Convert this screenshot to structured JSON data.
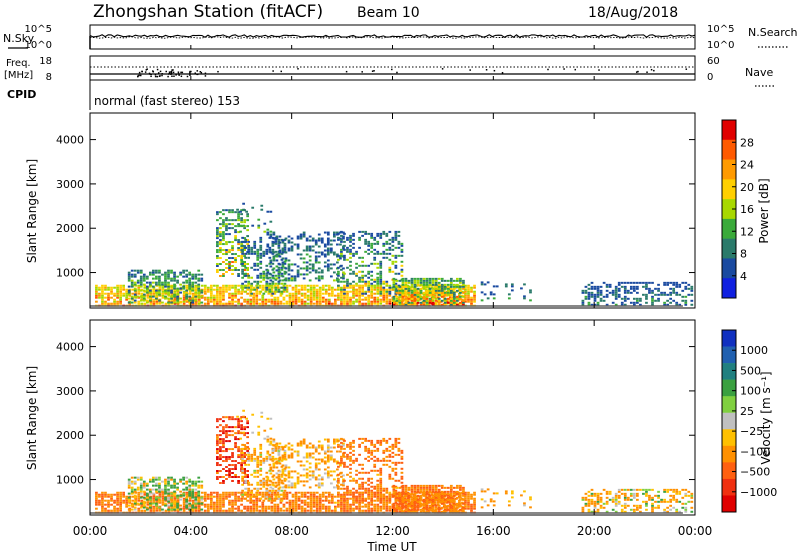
{
  "header": {
    "title": "Zhongshan Station (fitACF)",
    "beam": "Beam 10",
    "date": "18/Aug/2018"
  },
  "chart_data": [
    {
      "type": "line",
      "panel": "noise",
      "left_label": "N.Sky",
      "right_label": "N.Search",
      "left_ticks": [
        "10^5",
        "10^0"
      ],
      "right_ticks": [
        "10^5",
        "10^0"
      ],
      "scale": "log"
    },
    {
      "type": "scatter",
      "panel": "frequency",
      "left_label_1": "Freq.",
      "left_label_2": "[MHz]",
      "right_label": "Nave",
      "left_ticks": [
        "18",
        "8"
      ],
      "right_ticks": [
        "60",
        "0"
      ],
      "freq_ylim": [
        8,
        18
      ],
      "nave_ylim": [
        0,
        60
      ]
    },
    {
      "type": "table",
      "panel": "cpid",
      "label": "CPID",
      "mode": "normal (fast stereo) 153"
    },
    {
      "type": "heatmap",
      "panel": "power",
      "ylabel": "Slant Range [km]",
      "yticks": [
        "1000",
        "2000",
        "3000",
        "4000"
      ],
      "ytick_values": [
        1000,
        2000,
        3000,
        4000
      ],
      "ylim": [
        200,
        4600
      ],
      "xlim": [
        0,
        24
      ],
      "colorbar_label": "Power [dB]",
      "colorbar_ticks": [
        "28",
        "24",
        "20",
        "16",
        "12",
        "8",
        "4"
      ],
      "colorbar_colors": [
        "#e00000",
        "#ff5a00",
        "#ff9a00",
        "#ffcf00",
        "#a8d800",
        "#3aaa3a",
        "#2a7a6a",
        "#1a4aa0",
        "#1020e0"
      ]
    },
    {
      "type": "heatmap",
      "panel": "velocity",
      "ylabel": "Slant Range [km]",
      "yticks": [
        "1000",
        "2000",
        "3000",
        "4000"
      ],
      "ytick_values": [
        1000,
        2000,
        3000,
        4000
      ],
      "ylim": [
        200,
        4600
      ],
      "xlim": [
        0,
        24
      ],
      "colorbar_label": "Velocity [m s⁻¹]",
      "colorbar_ticks": [
        "1000",
        "500",
        "100",
        "25",
        "−25",
        "−100",
        "−500",
        "−1000"
      ],
      "colorbar_colors": [
        "#1030c0",
        "#2060b0",
        "#208080",
        "#3aa040",
        "#80d040",
        "#c0c0c0",
        "#ffc000",
        "#ff9000",
        "#ff6010",
        "#f03010",
        "#e00000"
      ]
    }
  ],
  "xaxis": {
    "label": "Time UT",
    "ticks": [
      "00:00",
      "04:00",
      "08:00",
      "12:00",
      "16:00",
      "20:00",
      "00:00"
    ],
    "tick_hours": [
      0,
      4,
      8,
      12,
      16,
      20,
      24
    ]
  },
  "echo_regions": [
    {
      "t0": 0.2,
      "t1": 15.2,
      "r0": 230,
      "r1": 700,
      "p": 0.75,
      "pw": [
        16,
        28
      ],
      "vl": [
        -300,
        -60
      ]
    },
    {
      "t0": 1.5,
      "t1": 4.5,
      "r0": 300,
      "r1": 1050,
      "p": 0.5,
      "pw": [
        6,
        20
      ],
      "vl": [
        -100,
        200
      ]
    },
    {
      "t0": 5.0,
      "t1": 6.3,
      "r0": 900,
      "r1": 2400,
      "p": 0.5,
      "pw": [
        6,
        26
      ],
      "vl": [
        -1000,
        -100
      ]
    },
    {
      "t0": 6.0,
      "t1": 7.8,
      "r0": 500,
      "r1": 1800,
      "p": 0.45,
      "pw": [
        4,
        16
      ],
      "vl": [
        -200,
        50
      ]
    },
    {
      "t0": 7.0,
      "t1": 10.0,
      "r0": 800,
      "r1": 1900,
      "p": 0.35,
      "pw": [
        4,
        14
      ],
      "vl": [
        -150,
        30
      ]
    },
    {
      "t0": 9.8,
      "t1": 12.4,
      "r0": 500,
      "r1": 1900,
      "p": 0.4,
      "pw": [
        4,
        22
      ],
      "vl": [
        -400,
        -60
      ]
    },
    {
      "t0": 12.0,
      "t1": 14.8,
      "r0": 250,
      "r1": 850,
      "p": 0.8,
      "pw": [
        8,
        28
      ],
      "vl": [
        -300,
        -60
      ]
    },
    {
      "t0": 15.5,
      "t1": 17.5,
      "r0": 350,
      "r1": 800,
      "p": 0.18,
      "pw": [
        4,
        12
      ],
      "vl": [
        -200,
        30
      ]
    },
    {
      "t0": 19.5,
      "t1": 23.9,
      "r0": 250,
      "r1": 750,
      "p": 0.4,
      "pw": [
        4,
        12
      ],
      "vl": [
        -200,
        100
      ]
    },
    {
      "t0": 5.8,
      "t1": 7.2,
      "r0": 1900,
      "r1": 2600,
      "p": 0.15,
      "pw": [
        4,
        14
      ],
      "vl": [
        -100,
        30
      ]
    }
  ]
}
